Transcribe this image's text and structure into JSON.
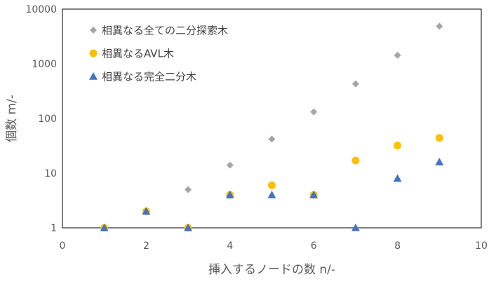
{
  "chart_data": {
    "type": "scatter",
    "xlabel": "挿入するノードの数 n/-",
    "ylabel": "個数 m/-",
    "xlim": [
      0,
      10
    ],
    "ylim": [
      1,
      10000
    ],
    "yscale": "log",
    "x_ticks": [
      0,
      2,
      4,
      6,
      8,
      10
    ],
    "y_ticks": [
      1,
      10,
      100,
      1000,
      10000
    ],
    "legend_position": "top-left",
    "grid": false,
    "series": [
      {
        "name": "相異なる全ての二分探索木",
        "marker": "diamond",
        "color": "#a5a5a5",
        "x": [
          1,
          2,
          3,
          4,
          5,
          6,
          7,
          8,
          9
        ],
        "y": [
          1,
          2,
          5,
          14,
          42,
          132,
          429,
          1430,
          4862
        ]
      },
      {
        "name": "相異なるAVL木",
        "marker": "circle",
        "color": "#ffc000",
        "x": [
          1,
          2,
          3,
          4,
          5,
          6,
          7,
          8,
          9
        ],
        "y": [
          1,
          2,
          1,
          4,
          6,
          4,
          17,
          32,
          44
        ]
      },
      {
        "name": "相異なる完全二分木",
        "marker": "triangle",
        "color": "#4472c4",
        "x": [
          1,
          2,
          3,
          4,
          5,
          6,
          7,
          8,
          9
        ],
        "y": [
          1,
          2,
          1,
          4,
          4,
          4,
          1,
          8,
          16
        ]
      }
    ]
  }
}
